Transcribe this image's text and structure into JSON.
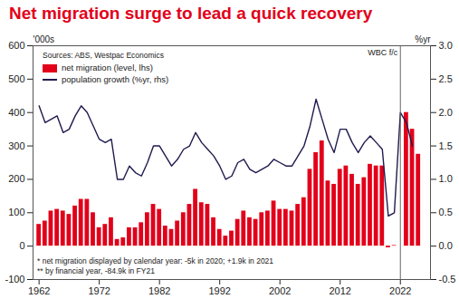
{
  "chart_data": {
    "type": "bar",
    "title": "Net migration surge to lead a quick recovery",
    "source": "Sources: ABS, Westpac Economics",
    "y_label": "'000s",
    "y2_label": "%yr",
    "notes": [
      "* net migration displayed by calendar year: -5k in 2020; +1.9k in 2021",
      "** by financial year, -84.9k in FY21"
    ],
    "forecast": {
      "x": 2022,
      "label": "WBC f/c"
    },
    "x": [
      1962,
      1963,
      1964,
      1965,
      1966,
      1967,
      1968,
      1969,
      1970,
      1971,
      1972,
      1973,
      1974,
      1975,
      1976,
      1977,
      1978,
      1979,
      1980,
      1981,
      1982,
      1983,
      1984,
      1985,
      1986,
      1987,
      1988,
      1989,
      1990,
      1991,
      1992,
      1993,
      1994,
      1995,
      1996,
      1997,
      1998,
      1999,
      2000,
      2001,
      2002,
      2003,
      2004,
      2005,
      2006,
      2007,
      2008,
      2009,
      2010,
      2011,
      2012,
      2013,
      2014,
      2015,
      2016,
      2017,
      2018,
      2019,
      2020,
      2021,
      2022,
      2023,
      2024,
      2025
    ],
    "series": [
      {
        "name": "net migration (level, lhs)",
        "type": "bar",
        "color": "#e2001a",
        "values": [
          65,
          75,
          105,
          110,
          105,
          95,
          120,
          140,
          140,
          100,
          55,
          65,
          85,
          20,
          25,
          55,
          55,
          70,
          100,
          125,
          110,
          60,
          50,
          75,
          100,
          125,
          170,
          130,
          125,
          85,
          50,
          30,
          45,
          80,
          105,
          85,
          80,
          100,
          105,
          135,
          110,
          110,
          105,
          125,
          145,
          230,
          280,
          315,
          195,
          185,
          230,
          240,
          215,
          185,
          205,
          245,
          240,
          240,
          -5,
          1.9,
          null,
          400,
          350,
          275
        ]
      },
      {
        "name": "population growth (%yr, rhs)",
        "type": "line",
        "color": "#1f1a4e",
        "axis": "y2",
        "values": [
          2.1,
          1.85,
          1.9,
          1.95,
          1.7,
          1.75,
          1.95,
          2.1,
          2.0,
          1.8,
          1.6,
          1.55,
          1.6,
          1.0,
          1.0,
          1.2,
          1.1,
          1.05,
          1.25,
          1.5,
          1.5,
          1.35,
          1.2,
          1.3,
          1.45,
          1.5,
          1.7,
          1.55,
          1.45,
          1.35,
          1.2,
          1.0,
          1.05,
          1.25,
          1.3,
          1.15,
          1.1,
          1.15,
          1.2,
          1.3,
          1.25,
          1.2,
          1.2,
          1.35,
          1.5,
          1.8,
          2.2,
          1.9,
          1.6,
          1.4,
          1.75,
          1.75,
          1.55,
          1.4,
          1.55,
          1.65,
          1.55,
          1.45,
          0.45,
          0.5,
          2.0,
          1.85,
          1.5,
          null
        ]
      }
    ],
    "xlim": [
      1961,
      2027
    ],
    "xticks": [
      1962,
      1972,
      1982,
      1992,
      2002,
      2012,
      2022
    ],
    "ylim": [
      -100,
      600
    ],
    "yticks": [
      -100,
      0,
      100,
      200,
      300,
      400,
      500,
      600
    ],
    "y2lim": [
      -0.5,
      3.0
    ],
    "y2ticks": [
      -0.5,
      {
        "value": 0,
        "label": "0.0"
      },
      0.5,
      {
        "value": 1,
        "label": "1.0"
      },
      1.5,
      {
        "value": 2,
        "label": "2.0"
      },
      2.5,
      {
        "value": 3,
        "label": "3.0"
      }
    ],
    "grid": false,
    "legend": "top-left",
    "data_labels": false
  }
}
